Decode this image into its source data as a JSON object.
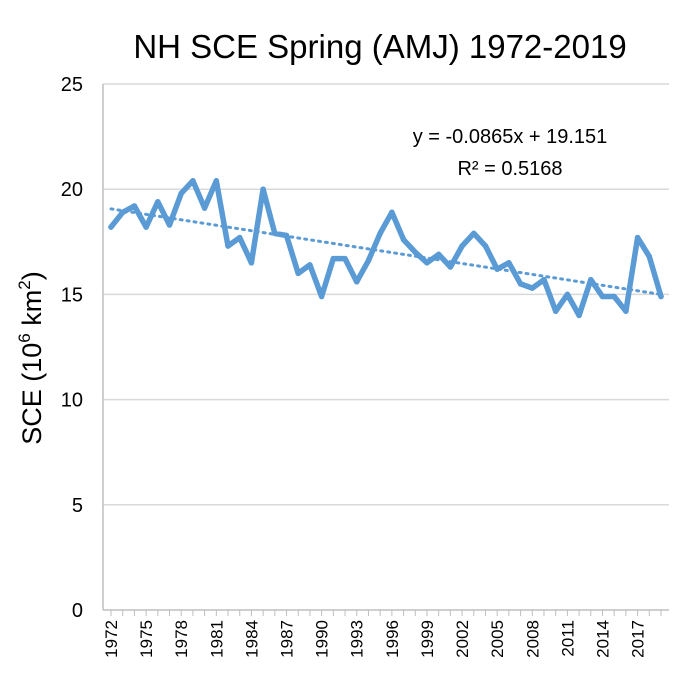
{
  "chart_data": {
    "type": "line",
    "title": "NH SCE Spring (AMJ) 1972-2019",
    "ylabel": {
      "base": "SCE (10",
      "exp1": "6",
      "mid": " km",
      "exp2": "2",
      "end": ")"
    },
    "xlabel": "",
    "ylim": [
      0,
      25
    ],
    "yticks": [
      "0",
      "5",
      "10",
      "15",
      "20",
      "25"
    ],
    "yticks_values": [
      0,
      5,
      10,
      15,
      20,
      25
    ],
    "xlim": [
      1972,
      2019
    ],
    "xticks": [
      "1972",
      "1975",
      "1978",
      "1981",
      "1984",
      "1987",
      "1990",
      "1993",
      "1996",
      "1999",
      "2002",
      "2005",
      "2008",
      "2011",
      "2014",
      "2017"
    ],
    "grid": true,
    "series_color": "#5b9bd5",
    "trend_color": "#5b9bd5",
    "trendline": {
      "slope": -0.0865,
      "intercept": 19.151,
      "equation": "y = -0.0865x + 19.151",
      "r2": "R² = 0.5168"
    },
    "x": [
      1972,
      1973,
      1974,
      1975,
      1976,
      1977,
      1978,
      1979,
      1980,
      1981,
      1982,
      1983,
      1984,
      1985,
      1986,
      1987,
      1988,
      1989,
      1990,
      1991,
      1992,
      1993,
      1994,
      1995,
      1996,
      1997,
      1998,
      1999,
      2000,
      2001,
      2002,
      2003,
      2004,
      2005,
      2006,
      2007,
      2008,
      2009,
      2010,
      2011,
      2012,
      2013,
      2014,
      2015,
      2016,
      2017,
      2018,
      2019
    ],
    "values": [
      18.2,
      18.9,
      19.2,
      18.2,
      19.4,
      18.3,
      19.8,
      20.4,
      19.1,
      20.4,
      17.3,
      17.7,
      16.5,
      20.0,
      17.9,
      17.8,
      16.0,
      16.4,
      14.9,
      16.7,
      16.7,
      15.6,
      16.6,
      17.9,
      18.9,
      17.6,
      17.0,
      16.5,
      16.9,
      16.3,
      17.3,
      17.9,
      17.3,
      16.2,
      16.5,
      15.5,
      15.3,
      15.7,
      14.2,
      15.0,
      14.0,
      15.7,
      14.9,
      14.9,
      14.2,
      17.7,
      16.8,
      14.9
    ]
  }
}
